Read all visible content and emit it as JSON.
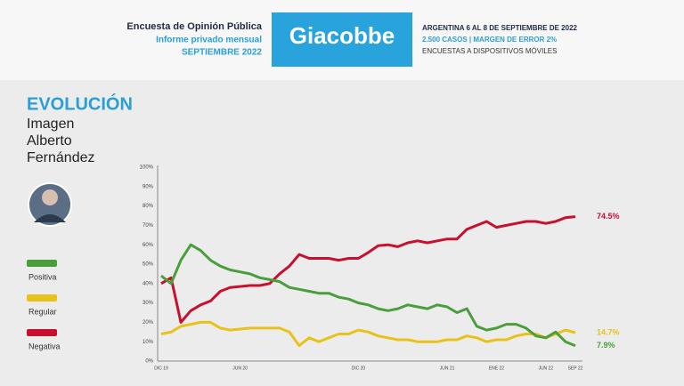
{
  "header": {
    "left": [
      "Encuesta de Opinión Pública",
      "Informe privado mensual",
      "SEPTIEMBRE 2022"
    ],
    "brand": "Giacobbe",
    "right": [
      "ARGENTINA 6 AL 8 DE SEPTIEMBRE DE 2022",
      "2.500 CASOS | MARGEN DE ERROR 2%",
      "ENCUESTAS A DISPOSITIVOS MÓVILES"
    ]
  },
  "sidebar": {
    "title": "EVOLUCIÓN",
    "subtitle": [
      "Imagen",
      "Alberto",
      "Fernández"
    ]
  },
  "chart_data": {
    "type": "line",
    "categories": [
      "DIC 19",
      null,
      null,
      null,
      null,
      null,
      null,
      null,
      "JUN 20",
      null,
      null,
      null,
      null,
      null,
      null,
      null,
      null,
      null,
      null,
      null,
      "DIC 20",
      null,
      null,
      null,
      null,
      null,
      null,
      null,
      null,
      "JUN 21",
      null,
      null,
      null,
      null,
      "ENE 22",
      null,
      null,
      null,
      null,
      "JUN 22",
      null,
      null,
      "SEP 22"
    ],
    "series": [
      {
        "name": "Negativa",
        "color": "#c8102e",
        "values": [
          40,
          43,
          20,
          26,
          29,
          31,
          36,
          38,
          38.5,
          39,
          39,
          40,
          45,
          49,
          55,
          53,
          53,
          53,
          52,
          53,
          53,
          56,
          59.5,
          60,
          59,
          61,
          62,
          61,
          62,
          63,
          63,
          68,
          70,
          72,
          69,
          70,
          71,
          72,
          72,
          71,
          72,
          74,
          74.5
        ],
        "value_labels": [
          null,
          null,
          null,
          null,
          null,
          null,
          null,
          null,
          null,
          null,
          null,
          null,
          null,
          null,
          null,
          null,
          null,
          null,
          null,
          null,
          null,
          null,
          null,
          null,
          null,
          null,
          null,
          null,
          null,
          null,
          null,
          null,
          null,
          null,
          null,
          null,
          null,
          null,
          null,
          null,
          null,
          null,
          "74.5%"
        ]
      },
      {
        "name": "Regular",
        "color": "#e8c21a",
        "values": [
          14,
          15,
          18,
          19,
          20,
          20,
          17,
          16,
          16.5,
          17,
          17,
          17,
          17,
          15,
          8,
          12,
          10,
          12,
          14,
          14,
          16,
          15,
          13,
          12,
          11,
          11,
          10,
          10,
          10,
          11,
          11,
          13,
          12,
          10,
          11,
          11,
          13,
          14,
          14,
          12,
          14,
          16,
          14.7
        ],
        "value_labels": [
          null,
          null,
          null,
          null,
          null,
          null,
          null,
          null,
          null,
          null,
          null,
          null,
          null,
          null,
          null,
          null,
          null,
          null,
          null,
          null,
          null,
          null,
          null,
          null,
          null,
          null,
          null,
          null,
          null,
          null,
          null,
          null,
          null,
          null,
          null,
          null,
          null,
          null,
          null,
          null,
          null,
          null,
          "14.7%"
        ]
      },
      {
        "name": "Positiva",
        "color": "#4a9e3c",
        "values": [
          44,
          40,
          52,
          60,
          57,
          52,
          49,
          47,
          46,
          45,
          43,
          42,
          41,
          38,
          37,
          36,
          35,
          35,
          33,
          32,
          30,
          29,
          27,
          26,
          27,
          29,
          28,
          27,
          29,
          28,
          25,
          27,
          18,
          16,
          17,
          19,
          19,
          17,
          13,
          12,
          15,
          10,
          7.9
        ],
        "value_labels": [
          null,
          null,
          null,
          null,
          null,
          null,
          null,
          null,
          null,
          null,
          null,
          null,
          null,
          null,
          null,
          null,
          null,
          null,
          null,
          null,
          null,
          null,
          null,
          null,
          null,
          null,
          null,
          null,
          null,
          null,
          null,
          null,
          null,
          null,
          null,
          null,
          null,
          null,
          null,
          null,
          null,
          null,
          "7.9%"
        ]
      }
    ],
    "ylim": [
      0,
      100
    ],
    "yticks": [
      {
        "value": 0,
        "label": "0%"
      },
      {
        "value": 10,
        "label": "10%"
      },
      {
        "value": 20,
        "label": "20%"
      },
      {
        "value": 30,
        "label": "30%"
      },
      {
        "value": 40,
        "label": "40%"
      },
      {
        "value": 50,
        "label": "50%"
      },
      {
        "value": 60,
        "label": "60%"
      },
      {
        "value": 70,
        "label": "70%"
      },
      {
        "value": 80,
        "label": "80%"
      },
      {
        "value": 90,
        "label": "90%"
      },
      {
        "value": 100,
        "label": "100%"
      }
    ],
    "grid": false
  }
}
